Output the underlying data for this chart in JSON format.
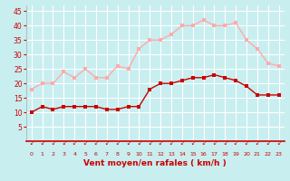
{
  "hours": [
    0,
    1,
    2,
    3,
    4,
    5,
    6,
    7,
    8,
    9,
    10,
    11,
    12,
    13,
    14,
    15,
    16,
    17,
    18,
    19,
    20,
    21,
    22,
    23
  ],
  "vent_moyen": [
    10,
    12,
    11,
    12,
    12,
    12,
    12,
    11,
    11,
    12,
    12,
    18,
    20,
    20,
    21,
    22,
    22,
    23,
    22,
    21,
    19,
    16,
    16,
    16
  ],
  "rafales": [
    18,
    20,
    20,
    24,
    22,
    25,
    22,
    22,
    26,
    25,
    32,
    35,
    35,
    37,
    40,
    40,
    42,
    40,
    40,
    41,
    35,
    32,
    27,
    26
  ],
  "bg_color": "#c8eef0",
  "grid_color": "#ffffff",
  "line_moyen_color": "#cc0000",
  "line_rafales_color": "#ffaaaa",
  "xlabel": "Vent moyen/en rafales ( km/h )",
  "xlabel_color": "#cc0000",
  "tick_color": "#cc0000",
  "ylim": [
    0,
    47
  ],
  "yticks": [
    5,
    10,
    15,
    20,
    25,
    30,
    35,
    40,
    45
  ],
  "marker_size": 2.5,
  "line_width": 1.0
}
